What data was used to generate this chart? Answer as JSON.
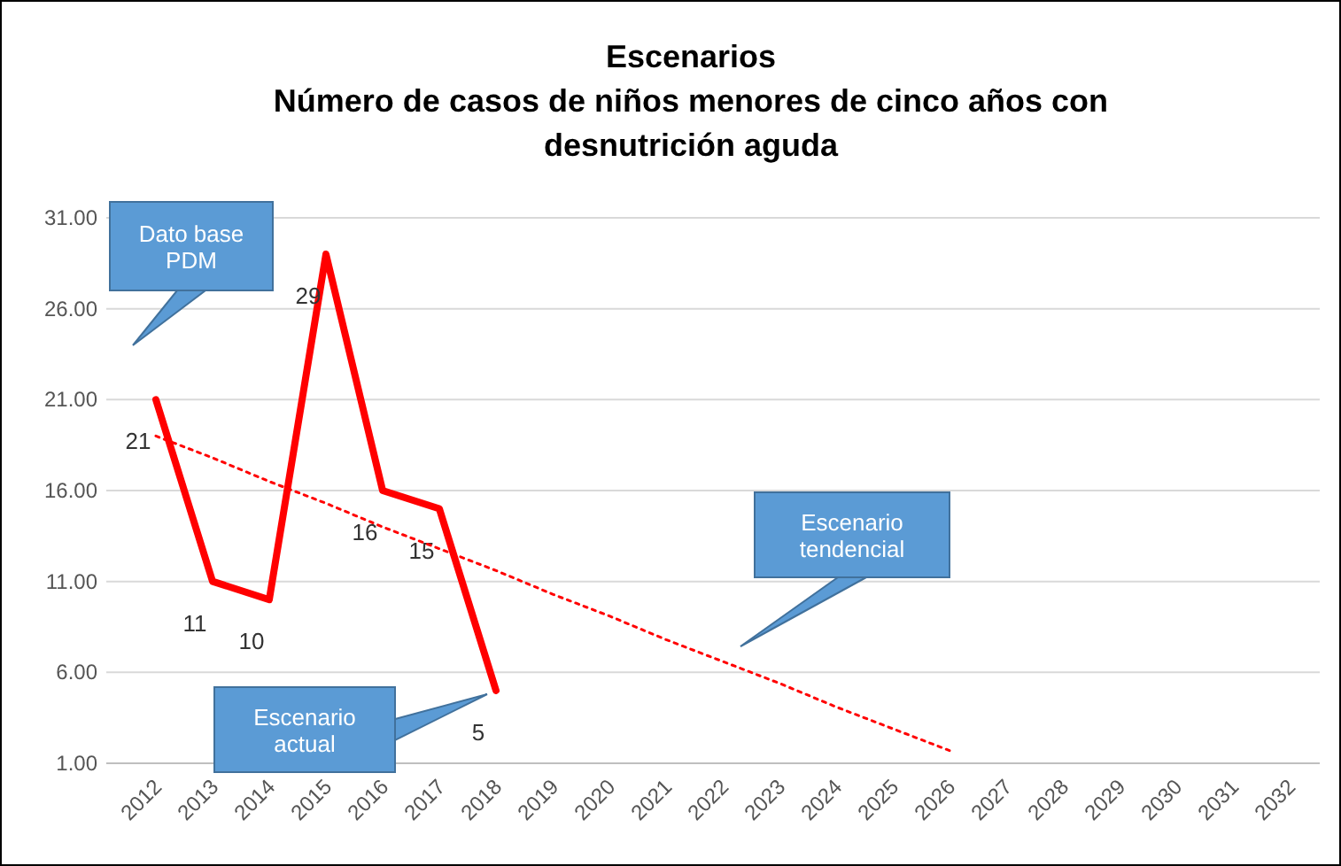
{
  "chart_data": {
    "type": "line",
    "title": "Escenarios\nNúmero de casos de niños menores de cinco años con\ndesnutrición aguda",
    "categories": [
      "2012",
      "2013",
      "2014",
      "2015",
      "2016",
      "2017",
      "2018",
      "2019",
      "2020",
      "2021",
      "2022",
      "2023",
      "2024",
      "2025",
      "2026",
      "2027",
      "2028",
      "2029",
      "2030",
      "2031",
      "2032"
    ],
    "series": [
      {
        "color": "#ff0000",
        "values": [
          21,
          11,
          10,
          29,
          16,
          15,
          5,
          null,
          null,
          null,
          null,
          null,
          null,
          null,
          null,
          null,
          null,
          null,
          null,
          null,
          null
        ],
        "value_labels": [
          "21",
          "11",
          "10",
          "29",
          "16",
          "15",
          "5",
          null,
          null,
          null,
          null,
          null,
          null,
          null,
          null,
          null,
          null,
          null,
          null,
          null,
          null
        ],
        "line_style": "solid"
      },
      {
        "color": "#ff0000",
        "values": [
          19,
          17.8,
          16.5,
          15.3,
          14.0,
          12.8,
          11.6,
          10.3,
          9.1,
          7.8,
          6.6,
          5.4,
          4.1,
          2.9,
          1.7,
          null,
          null,
          null,
          null,
          null,
          null
        ],
        "line_style": "dotted"
      }
    ],
    "ylim": [
      1,
      31
    ],
    "yticks": [
      {
        "value": 1,
        "label": "1.00"
      },
      {
        "value": 6,
        "label": "6.00"
      },
      {
        "value": 11,
        "label": "11.00"
      },
      {
        "value": 16,
        "label": "16.00"
      },
      {
        "value": 21,
        "label": "21.00"
      },
      {
        "value": 26,
        "label": "26.00"
      },
      {
        "value": 31,
        "label": "31.00"
      }
    ],
    "grid": "y",
    "marker": "none",
    "annotations": [
      "Dato base\nPDM",
      "Escenario\ntendencial",
      "Escenario\nactual"
    ]
  }
}
